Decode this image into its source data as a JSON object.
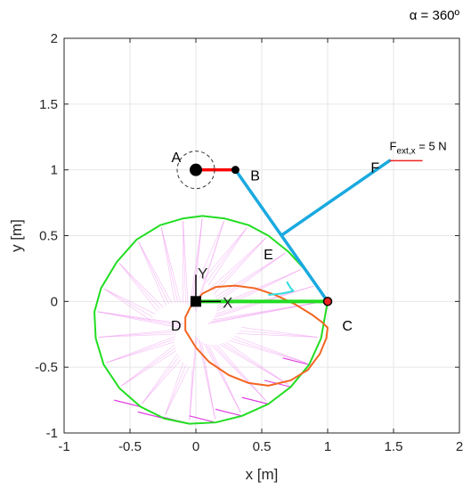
{
  "chart_data": {
    "type": "line",
    "title": "",
    "corner_label": "α = 360º",
    "xlabel": "x [m]",
    "ylabel": "y [m]",
    "xlim": [
      -1,
      2
    ],
    "ylim": [
      -1,
      2
    ],
    "xticks": [
      -1,
      -0.5,
      0,
      0.5,
      1,
      1.5,
      2
    ],
    "yticks": [
      -1,
      -0.5,
      0,
      0.5,
      1,
      1.5,
      2
    ],
    "xtick_labels": [
      "-1",
      "-0.5",
      "0",
      "0.5",
      "1",
      "1.5",
      "2"
    ],
    "ytick_labels": [
      "-1",
      "-0.5",
      "0",
      "0.5",
      "1",
      "1.5",
      "2"
    ],
    "grid": true,
    "points": [
      {
        "label": "A",
        "x": 0,
        "y": 1,
        "label_x": -0.15,
        "label_y": 1.1
      },
      {
        "label": "B",
        "x": 0.3,
        "y": 1,
        "label_x": 0.45,
        "label_y": 0.96
      },
      {
        "label": "C",
        "x": 1,
        "y": 0,
        "label_x": 1.15,
        "label_y": -0.18
      },
      {
        "label": "D",
        "x": 0,
        "y": 0,
        "label_x": -0.15,
        "label_y": -0.18
      },
      {
        "label": "E",
        "x": 0.66,
        "y": 0.51,
        "label_x": 0.55,
        "label_y": 0.36
      },
      {
        "label": "F",
        "x": 1.47,
        "y": 1.07,
        "label_x": 1.36,
        "label_y": 1.02
      }
    ],
    "force": {
      "label_main": "F",
      "label_sub": "ext,x",
      "label_rest": " = 5 N",
      "x0": 1.47,
      "y0": 1.07,
      "x1": 1.72,
      "y1": 1.07
    },
    "frame": {
      "origin_x": 0,
      "origin_y": 0,
      "x_label": "X",
      "y_label": "Y"
    },
    "links": [
      {
        "name": "crank-AB",
        "color": "#ff0000",
        "x": [
          0,
          0.3
        ],
        "y": [
          1,
          1
        ]
      },
      {
        "name": "coupler-BC",
        "color": "#1aa9e0",
        "x": [
          0.3,
          1
        ],
        "y": [
          1,
          0
        ]
      },
      {
        "name": "rocker-EF",
        "color": "#1aa9e0",
        "x": [
          0.66,
          1.47
        ],
        "y": [
          0.51,
          1.07
        ]
      },
      {
        "name": "ground-DC",
        "color": "#22dd22",
        "x": [
          0,
          1
        ],
        "y": [
          0,
          0
        ]
      }
    ],
    "series": [
      {
        "name": "",
        "color": "#22dd22",
        "x": [
          1.0,
          0.92,
          0.82,
          0.7,
          0.55,
          0.4,
          0.22,
          0.05,
          -0.1,
          -0.27,
          -0.45,
          -0.6,
          -0.72,
          -0.77,
          -0.76,
          -0.7,
          -0.58,
          -0.42,
          -0.24,
          -0.05,
          0.15,
          0.35,
          0.55,
          0.72,
          0.86,
          0.95,
          1.0
        ],
        "y": [
          0.0,
          0.12,
          0.25,
          0.38,
          0.5,
          0.58,
          0.63,
          0.65,
          0.63,
          0.58,
          0.47,
          0.3,
          0.1,
          -0.08,
          -0.28,
          -0.48,
          -0.66,
          -0.8,
          -0.89,
          -0.93,
          -0.92,
          -0.87,
          -0.78,
          -0.65,
          -0.48,
          -0.28,
          0.0
        ]
      },
      {
        "name": "",
        "color": "#f26522",
        "x": [
          0.0,
          0.05,
          0.15,
          0.3,
          0.45,
          0.6,
          0.75,
          0.88,
          0.96,
          1.0,
          0.99,
          0.94,
          0.85,
          0.72,
          0.55,
          0.4,
          0.25,
          0.1,
          0.0,
          -0.08,
          -0.08,
          -0.04,
          0.0
        ],
        "y": [
          0.0,
          0.06,
          0.11,
          0.12,
          0.1,
          0.05,
          -0.02,
          -0.1,
          -0.16,
          -0.2,
          -0.28,
          -0.4,
          -0.52,
          -0.6,
          -0.64,
          -0.62,
          -0.56,
          -0.46,
          -0.35,
          -0.22,
          -0.12,
          -0.04,
          0.0
        ]
      },
      {
        "name": "",
        "color": "#33dddd",
        "x": [
          0.55,
          0.6,
          0.65,
          0.7,
          0.74,
          0.72,
          0.69
        ],
        "y": [
          0.05,
          0.055,
          0.06,
          0.07,
          0.08,
          0.1,
          0.15
        ]
      }
    ]
  }
}
